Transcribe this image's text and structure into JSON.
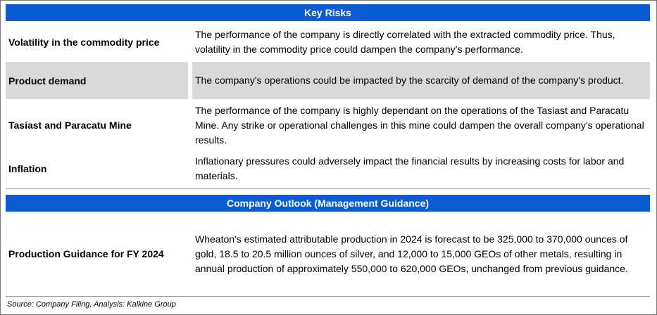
{
  "key_risks": {
    "header": "Key Risks",
    "rows": [
      {
        "label": "Volatility in the commodity price",
        "text": "The performance of the company is directly correlated with the extracted commodity price. Thus, volatility in the commodity price could dampen the company’s performance."
      },
      {
        "label": "Product demand",
        "text": "The company's operations could be impacted by the scarcity of demand of the company's product."
      },
      {
        "label": "Tasiast and Paracatu Mine",
        "text": "The performance of the company is highly dependant on the operations of the Tasiast and Paracatu Mine. Any strike or operational challenges in this mine could dampen the overall company's operational results."
      },
      {
        "label": "Inflation",
        "text": "Inflationary pressures could adversely impact the financial results by increasing costs for labor and materials."
      }
    ]
  },
  "outlook": {
    "header": "Company Outlook (Management Guidance)",
    "rows": [
      {
        "label": "Production Guidance for  FY 2024",
        "text": "Wheaton's estimated attributable production in 2024 is forecast to be 325,000 to 370,000 ounces of gold, 18.5 to 20.5 million ounces of silver, and 12,000 to 15,000 GEOs  of other metals, resulting in annual production of approximately 550,000 to 620,000 GEOs, unchanged from previous guidance."
      }
    ]
  },
  "source": "Source: Company Filing, Analysis: Kalkine Group",
  "colors": {
    "header_bar": "#0b5bd3",
    "shaded_row": "#d9d9d9"
  }
}
